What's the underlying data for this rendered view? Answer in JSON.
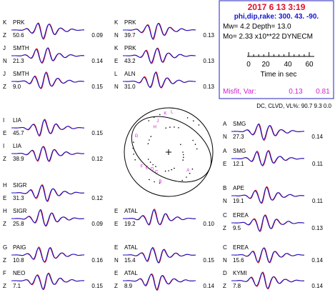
{
  "header": {
    "date_time": "2017  6 13    3:19",
    "angles_line": "phi,dip,rake: 300. 43. -90.",
    "mw_line": "Mw=  4.2    Depth=     13.0",
    "mo_line": "Mo=  2.33 x10**22 DYNECM",
    "scale_ticks": [
      "0",
      "20",
      "40",
      "60"
    ],
    "scale_label": "Time  in sec",
    "misfit_label": "Misfit, Var:",
    "misfit_value": "0.13",
    "var_value": "0.81",
    "dc_line": "DC, CLVD, VL%:  90.7    9.3    0.0"
  },
  "colors": {
    "observed": "#d01010",
    "synthetic": "#1010d0",
    "title_red": "#e0102a",
    "title_blue": "#1515d0",
    "misfit_magenta": "#d020d0",
    "box_border": "#2020c0",
    "station_letters": "#d020d0"
  },
  "chart_data": {
    "type": "waveform-panel",
    "traces": [
      {
        "col": 0,
        "row": 0,
        "station": "PRK",
        "letter": "K",
        "comp": "Z",
        "dist": "50.6",
        "misfit": "0.09"
      },
      {
        "col": 0,
        "row": 1,
        "station": "SMTH",
        "letter": "J",
        "comp": "N",
        "dist": "21.3",
        "misfit": "0.14"
      },
      {
        "col": 0,
        "row": 2,
        "station": "SMTH",
        "letter": "J",
        "comp": "Z",
        "dist": "9.0",
        "misfit": "0.15"
      },
      {
        "col": 0,
        "row": 3,
        "station": "LIA",
        "letter": "I",
        "comp": "E",
        "dist": "45.7",
        "misfit": "0.15"
      },
      {
        "col": 0,
        "row": 4,
        "station": "LIA",
        "letter": "I",
        "comp": "Z",
        "dist": "38.9",
        "misfit": "0.12"
      },
      {
        "col": 0,
        "row": 5,
        "station": "SIGR",
        "letter": "H",
        "comp": "E",
        "dist": "31.3",
        "misfit": "0.12"
      },
      {
        "col": 0,
        "row": 6,
        "station": "SIGR",
        "letter": "H",
        "comp": "Z",
        "dist": "25.8",
        "misfit": "0.09"
      },
      {
        "col": 0,
        "row": 7,
        "station": "PAIG",
        "letter": "G",
        "comp": "Z",
        "dist": "10.8",
        "misfit": "0.16"
      },
      {
        "col": 0,
        "row": 8,
        "station": "NEO",
        "letter": "F",
        "comp": "Z",
        "dist": "7.1",
        "misfit": "0.15"
      },
      {
        "col": 1,
        "row": 0,
        "station": "PRK",
        "letter": "K",
        "comp": "N",
        "dist": "39.7",
        "misfit": "0.13"
      },
      {
        "col": 1,
        "row": 1,
        "station": "PRK",
        "letter": "K",
        "comp": "E",
        "dist": "43.2",
        "misfit": "0.13"
      },
      {
        "col": 1,
        "row": 2,
        "station": "ALN",
        "letter": "L",
        "comp": "N",
        "dist": "31.0",
        "misfit": "0.13"
      },
      {
        "col": 1,
        "row": 6,
        "station": "ATAL",
        "letter": "E",
        "comp": "E",
        "dist": "19.2",
        "misfit": "0.10"
      },
      {
        "col": 1,
        "row": 7,
        "station": "ATAL",
        "letter": "E",
        "comp": "N",
        "dist": "15.4",
        "misfit": "0.15"
      },
      {
        "col": 1,
        "row": 8,
        "station": "ATAL",
        "letter": "E",
        "comp": "Z",
        "dist": "8.9",
        "misfit": "0.14"
      },
      {
        "col": 2,
        "row": 3,
        "station": "SMG",
        "letter": "A",
        "comp": "N",
        "dist": "27.3",
        "misfit": "0.14"
      },
      {
        "col": 2,
        "row": 4,
        "station": "SMG",
        "letter": "A",
        "comp": "E",
        "dist": "12.1",
        "misfit": "0.11"
      },
      {
        "col": 2,
        "row": 5,
        "station": "APE",
        "letter": "B",
        "comp": "N",
        "dist": "19.1",
        "misfit": "0.11"
      },
      {
        "col": 2,
        "row": 6,
        "station": "EREA",
        "letter": "C",
        "comp": "Z",
        "dist": "9.5",
        "misfit": "0.13"
      },
      {
        "col": 2,
        "row": 7,
        "station": "EREA",
        "letter": "C",
        "comp": "N",
        "dist": "15.6",
        "misfit": "0.14"
      },
      {
        "col": 2,
        "row": 8,
        "station": "KYMI",
        "letter": "D",
        "comp": "Z",
        "dist": "7.8",
        "misfit": "0.14"
      }
    ],
    "beachball": {
      "strike": 300,
      "dip": 43,
      "rake": -90,
      "station_marks": [
        {
          "label": "A",
          "az": 135,
          "r": 0.62
        },
        {
          "label": "B",
          "az": 195,
          "r": 0.72
        },
        {
          "label": "C",
          "az": 210,
          "r": 0.55
        },
        {
          "label": "D",
          "az": 222,
          "r": 0.55
        },
        {
          "label": "E",
          "az": 232,
          "r": 0.62
        },
        {
          "label": "F",
          "az": 240,
          "r": 0.7
        },
        {
          "label": "G",
          "az": 295,
          "r": 0.8
        },
        {
          "label": "H",
          "az": 330,
          "r": 0.62
        },
        {
          "label": "J",
          "az": 340,
          "r": 0.72
        },
        {
          "label": "K",
          "az": 355,
          "r": 0.85
        },
        {
          "label": "L",
          "az": 5,
          "r": 0.88
        }
      ]
    }
  }
}
